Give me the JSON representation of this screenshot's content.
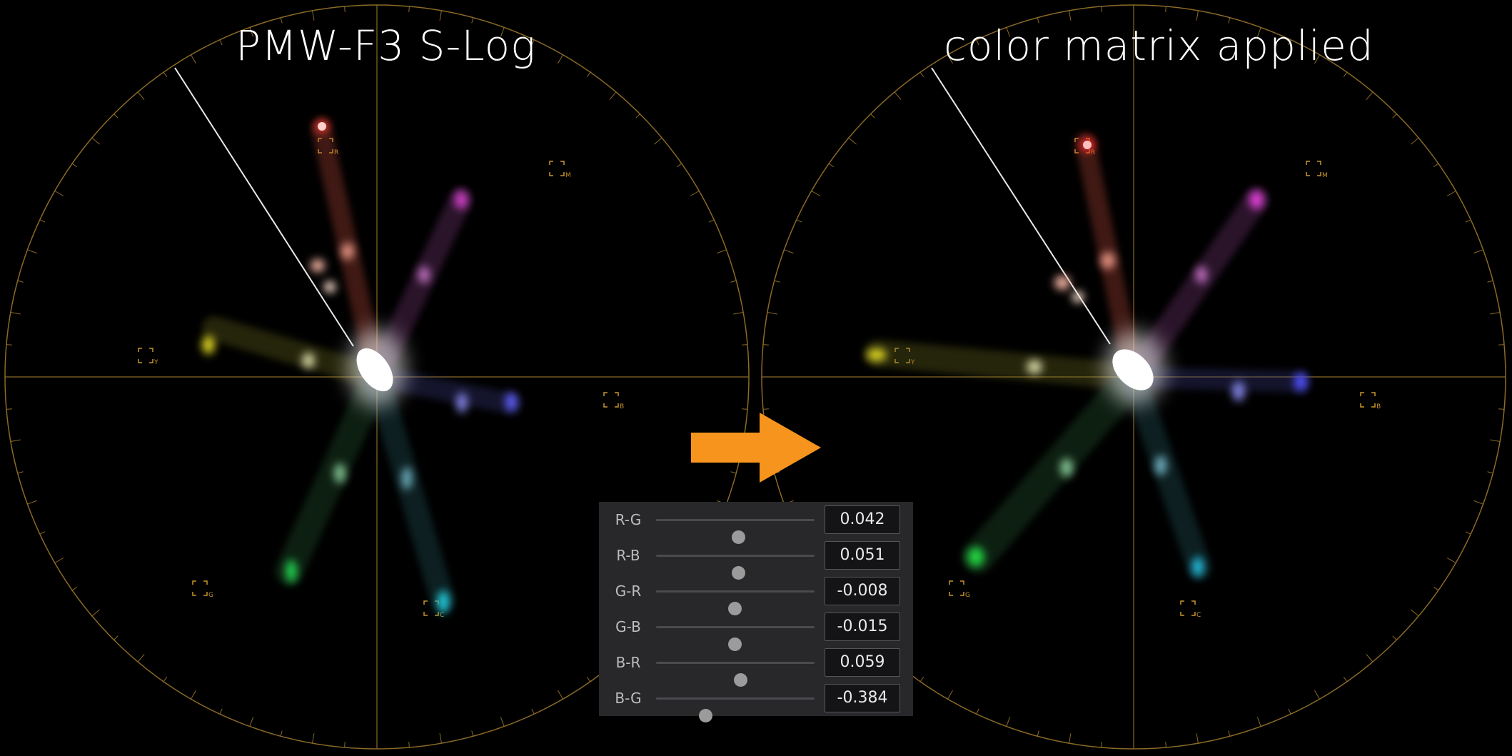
{
  "titles": {
    "left": "PMW-F3 S-Log",
    "right": "color matrix applied"
  },
  "graticule_color": "#8a6a26",
  "arrow_color": "#f7941d",
  "targets": [
    "R",
    "M",
    "B",
    "C",
    "G",
    "Y"
  ],
  "matrix": [
    {
      "label": "R-G",
      "value": "0.042",
      "level": 0.52
    },
    {
      "label": "R-B",
      "value": "0.051",
      "level": 0.52
    },
    {
      "label": "G-R",
      "value": "-0.008",
      "level": 0.495
    },
    {
      "label": "G-B",
      "value": "-0.015",
      "level": 0.495
    },
    {
      "label": "B-R",
      "value": "0.059",
      "level": 0.53
    },
    {
      "label": "B-G",
      "value": "-0.384",
      "level": 0.31
    }
  ]
}
